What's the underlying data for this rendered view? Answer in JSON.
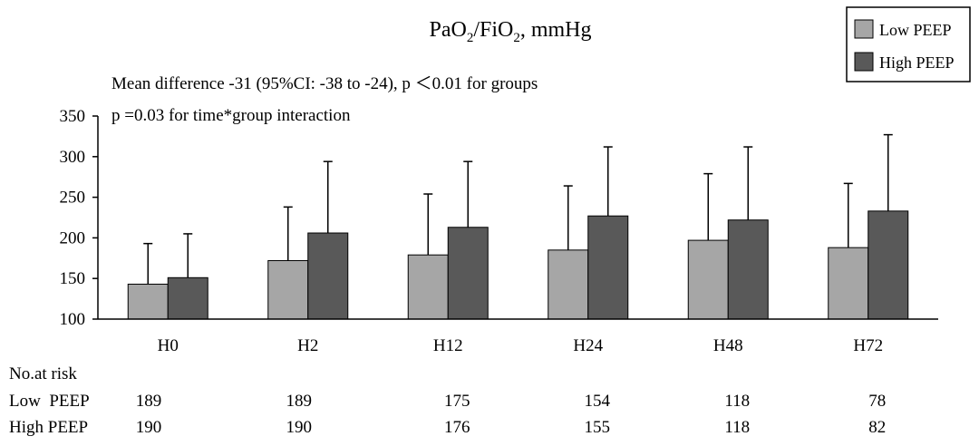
{
  "chart_data": {
    "type": "bar",
    "title_main": "PaO",
    "title_sub1": "2",
    "title_mid": "/FiO",
    "title_sub2": "2",
    "title_tail": ", mmHg",
    "annotation_1": "Mean difference -31 (95%CI: -38 to -24), p ＜0.01 for groups",
    "annotation_2": "p =0.03 for time*group interaction",
    "categories": [
      "H0",
      "H2",
      "H12",
      "H24",
      "H48",
      "H72"
    ],
    "ylim": [
      100,
      350
    ],
    "yticks": [
      100,
      150,
      200,
      250,
      300,
      350
    ],
    "legend_position": "top-right",
    "series": [
      {
        "name": "Low PEEP",
        "color": "#a6a6a6",
        "values": [
          143,
          172,
          179,
          185,
          197,
          188
        ],
        "error_upper": [
          193,
          238,
          254,
          264,
          279,
          267
        ]
      },
      {
        "name": "High PEEP",
        "color": "#595959",
        "values": [
          151,
          206,
          213,
          227,
          222,
          233
        ],
        "error_upper": [
          205,
          294,
          294,
          312,
          312,
          327
        ]
      }
    ],
    "risk_table": {
      "header": "No.at risk",
      "rows": [
        {
          "label": "Low  PEEP",
          "values": [
            "189",
            "189",
            "175",
            "154",
            "118",
            "78"
          ]
        },
        {
          "label": "High PEEP",
          "values": [
            "190",
            "190",
            "176",
            "155",
            "118",
            "82"
          ]
        }
      ]
    }
  }
}
